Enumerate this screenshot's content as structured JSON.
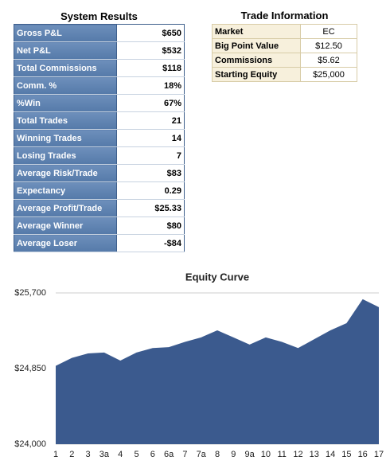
{
  "system_results": {
    "title": "System Results",
    "rows": [
      [
        "Gross P&L",
        "$650"
      ],
      [
        "Net P&L",
        "$532"
      ],
      [
        "Total Commissions",
        "$118"
      ],
      [
        "Comm. %",
        "18%"
      ],
      [
        "%Win",
        "67%"
      ],
      [
        "Total Trades",
        "21"
      ],
      [
        "Winning Trades",
        "14"
      ],
      [
        "Losing Trades",
        "7"
      ],
      [
        "Average Risk/Trade",
        "$83"
      ],
      [
        "Expectancy",
        "0.29"
      ],
      [
        "Average Profit/Trade",
        "$25.33"
      ],
      [
        "Average Winner",
        "$80"
      ],
      [
        "Average Loser",
        "-$84"
      ]
    ]
  },
  "trade_information": {
    "title": "Trade Information",
    "rows": [
      [
        "Market",
        "EC"
      ],
      [
        "Big Point Value",
        "$12.50"
      ],
      [
        "Commissions",
        "$5.62"
      ],
      [
        "Starting Equity",
        "$25,000"
      ]
    ]
  },
  "chart_data": {
    "type": "area",
    "title": "Equity Curve",
    "categories": [
      "1",
      "2",
      "3",
      "3a",
      "4",
      "5",
      "6",
      "6a",
      "7",
      "7a",
      "8",
      "9",
      "9a",
      "10",
      "11",
      "12",
      "13",
      "14",
      "15",
      "16",
      "17"
    ],
    "values": [
      24880,
      24970,
      25020,
      25030,
      24940,
      25030,
      25080,
      25090,
      25150,
      25200,
      25280,
      25200,
      25120,
      25200,
      25150,
      25080,
      25180,
      25280,
      25360,
      25630,
      25540
    ],
    "color": "#3b5a8e",
    "ylim": [
      24000,
      25700
    ],
    "yticks": [
      {
        "value": 24000,
        "label": "$24,000"
      },
      {
        "value": 24850,
        "label": "$24,850"
      },
      {
        "value": 25700,
        "label": "$25,700"
      }
    ],
    "grid": true
  }
}
